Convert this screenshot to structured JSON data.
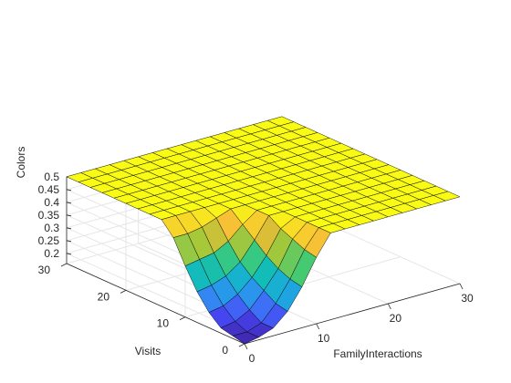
{
  "chart_data": {
    "type": "surface",
    "title": "",
    "xlabel": "FamilyInteractions",
    "ylabel": "Visits",
    "zlabel": "Colors",
    "xlim": [
      0,
      30
    ],
    "ylim": [
      0,
      30
    ],
    "zlim": [
      0.16,
      0.5
    ],
    "grid": true,
    "colormap": [
      "#3e26a8",
      "#4743f0",
      "#3b7df9",
      "#1ca8e0",
      "#12bdb7",
      "#3fca76",
      "#a7c839",
      "#f6b938",
      "#f9fb15"
    ],
    "x_ticks": [
      {
        "value": 0,
        "label": "0"
      },
      {
        "value": 10,
        "label": "10"
      },
      {
        "value": 20,
        "label": "20"
      },
      {
        "value": 30,
        "label": "30"
      }
    ],
    "y_ticks": [
      {
        "value": 0,
        "label": "0"
      },
      {
        "value": 10,
        "label": "10"
      },
      {
        "value": 20,
        "label": "20"
      },
      {
        "value": 30,
        "label": "30"
      }
    ],
    "z_ticks": [
      {
        "value": 0.2,
        "label": "0.2"
      },
      {
        "value": 0.25,
        "label": "0.25"
      },
      {
        "value": 0.3,
        "label": "0.3"
      },
      {
        "value": 0.35,
        "label": "0.35"
      },
      {
        "value": 0.4,
        "label": "0.4"
      },
      {
        "value": 0.45,
        "label": "0.45"
      },
      {
        "value": 0.5,
        "label": "0.5"
      }
    ],
    "grid_x": [
      0,
      2,
      4,
      6,
      8,
      10,
      12,
      14,
      16,
      18,
      20,
      22,
      24,
      26,
      28,
      30
    ],
    "grid_y": [
      0,
      2,
      4,
      6,
      8,
      10,
      12,
      14,
      16,
      18,
      20,
      22,
      24,
      26,
      28,
      30
    ],
    "z_rows_note_y_index": "each row i corresponds to grid_y[i]; each column j to grid_x[j]",
    "z": [
      [
        0.16,
        0.17,
        0.19,
        0.24,
        0.32,
        0.42,
        0.5,
        0.5,
        0.5,
        0.5,
        0.5,
        0.5,
        0.5,
        0.5,
        0.5,
        0.5
      ],
      [
        0.17,
        0.17,
        0.19,
        0.25,
        0.33,
        0.43,
        0.5,
        0.5,
        0.5,
        0.5,
        0.5,
        0.5,
        0.5,
        0.5,
        0.5,
        0.5
      ],
      [
        0.18,
        0.19,
        0.22,
        0.28,
        0.35,
        0.45,
        0.5,
        0.5,
        0.5,
        0.5,
        0.5,
        0.5,
        0.5,
        0.5,
        0.5,
        0.5
      ],
      [
        0.22,
        0.23,
        0.26,
        0.31,
        0.38,
        0.47,
        0.5,
        0.5,
        0.5,
        0.5,
        0.5,
        0.5,
        0.5,
        0.5,
        0.5,
        0.5
      ],
      [
        0.28,
        0.29,
        0.31,
        0.35,
        0.42,
        0.5,
        0.5,
        0.5,
        0.5,
        0.5,
        0.5,
        0.5,
        0.5,
        0.5,
        0.5,
        0.5
      ],
      [
        0.36,
        0.37,
        0.38,
        0.41,
        0.46,
        0.5,
        0.5,
        0.5,
        0.5,
        0.5,
        0.5,
        0.5,
        0.5,
        0.5,
        0.5,
        0.5
      ],
      [
        0.45,
        0.45,
        0.46,
        0.48,
        0.5,
        0.5,
        0.5,
        0.5,
        0.5,
        0.5,
        0.5,
        0.5,
        0.5,
        0.5,
        0.5,
        0.5
      ],
      [
        0.5,
        0.5,
        0.5,
        0.5,
        0.5,
        0.5,
        0.5,
        0.5,
        0.5,
        0.5,
        0.5,
        0.5,
        0.5,
        0.5,
        0.5,
        0.5
      ],
      [
        0.5,
        0.5,
        0.5,
        0.5,
        0.5,
        0.5,
        0.5,
        0.5,
        0.5,
        0.5,
        0.5,
        0.5,
        0.5,
        0.5,
        0.5,
        0.5
      ],
      [
        0.5,
        0.5,
        0.5,
        0.5,
        0.5,
        0.5,
        0.5,
        0.5,
        0.5,
        0.5,
        0.5,
        0.5,
        0.5,
        0.5,
        0.5,
        0.5
      ],
      [
        0.5,
        0.5,
        0.5,
        0.5,
        0.5,
        0.5,
        0.5,
        0.5,
        0.5,
        0.5,
        0.5,
        0.5,
        0.5,
        0.5,
        0.5,
        0.5
      ],
      [
        0.5,
        0.5,
        0.5,
        0.5,
        0.5,
        0.5,
        0.5,
        0.5,
        0.5,
        0.5,
        0.5,
        0.5,
        0.5,
        0.5,
        0.5,
        0.5
      ],
      [
        0.5,
        0.5,
        0.5,
        0.5,
        0.5,
        0.5,
        0.5,
        0.5,
        0.5,
        0.5,
        0.5,
        0.5,
        0.5,
        0.5,
        0.5,
        0.5
      ],
      [
        0.5,
        0.5,
        0.5,
        0.5,
        0.5,
        0.5,
        0.5,
        0.5,
        0.5,
        0.5,
        0.5,
        0.5,
        0.5,
        0.5,
        0.5,
        0.5
      ],
      [
        0.5,
        0.5,
        0.5,
        0.5,
        0.5,
        0.5,
        0.5,
        0.5,
        0.5,
        0.5,
        0.5,
        0.5,
        0.5,
        0.5,
        0.5,
        0.5
      ],
      [
        0.5,
        0.5,
        0.5,
        0.5,
        0.5,
        0.5,
        0.5,
        0.5,
        0.5,
        0.5,
        0.5,
        0.5,
        0.5,
        0.5,
        0.5,
        0.5
      ]
    ]
  }
}
